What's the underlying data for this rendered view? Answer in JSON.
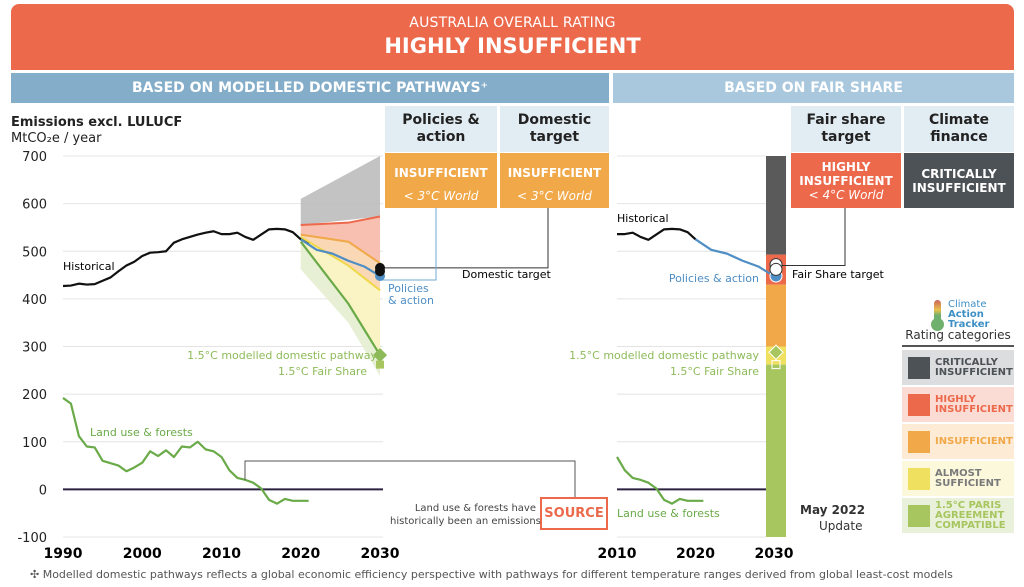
{
  "banner": {
    "subtitle": "AUSTRALIA OVERALL RATING",
    "title": "HIGHLY INSUFFICIENT"
  },
  "sections": {
    "left": "BASED ON MODELLED DOMESTIC PATHWAYS⁺",
    "right": "BASED ON FAIR SHARE"
  },
  "columns": [
    {
      "header": "Policies & action",
      "rating": "INSUFFICIENT",
      "sub": "< 3°C World",
      "color": "#f0a848"
    },
    {
      "header": "Domestic target",
      "rating": "INSUFFICIENT",
      "sub": "< 3°C World",
      "color": "#f0a848"
    },
    {
      "header": "Fair share target",
      "rating": "HIGHLY INSUFFICIENT",
      "sub": "< 4°C World",
      "color": "#ec694c"
    },
    {
      "header": "Climate finance",
      "rating": "CRITICALLY INSUFFICIENT",
      "sub": "",
      "color": "#4c5256"
    }
  ],
  "annotations": {
    "historical": "Historical",
    "policies_action": "Policies & action",
    "policies_line1": "Policies",
    "policies_line2": "& action",
    "domestic_target": "Domestic target",
    "fair_share_target": "Fair Share target",
    "modelled_pathway": "1.5°C modelled domestic pathway",
    "fair_share_15": "1.5°C Fair Share",
    "land_use": "Land use & forests",
    "source_note_1": "Land use & forests have",
    "source_note_2": "historically been an emissions",
    "source": "SOURCE",
    "update_1": "May 2022",
    "update_2": "Update"
  },
  "legend": {
    "logo": [
      "Climate",
      "Action",
      "Tracker"
    ],
    "title": "Rating categories",
    "items": [
      {
        "label": "CRITICALLY INSUFFICIENT",
        "color": "#4c5256",
        "bg": "#dcdddf",
        "text": "#4c5256"
      },
      {
        "label": "HIGHLY INSUFFICIENT",
        "color": "#ec694c",
        "bg": "#fbdcd5",
        "text": "#ec694c"
      },
      {
        "label": "INSUFFICIENT",
        "color": "#f0a848",
        "bg": "#fdebd6",
        "text": "#f0a848"
      },
      {
        "label": "ALMOST SUFFICIENT",
        "color": "#f0e060",
        "bg": "#fbf8dc",
        "text": "#7a7a7a"
      },
      {
        "label": "1.5°C PARIS AGREEMENT COMPATIBLE",
        "color": "#a7c65f",
        "bg": "#eaf1db",
        "text": "#a7c65f"
      }
    ]
  },
  "footnote": "✣ Modelled domestic pathways reflects a global economic efficiency perspective with pathways for different temperature ranges derived from global least-cost models",
  "chart_data": [
    {
      "type": "line",
      "title": "Emissions excl. LULUCF",
      "ylabel": "MtCO₂e / year",
      "ylim": [
        -100,
        700
      ],
      "yticks": [
        -100,
        0,
        100,
        200,
        300,
        400,
        500,
        600,
        700
      ],
      "xlim": [
        1990,
        2030
      ],
      "xticks": [
        1990,
        2000,
        2010,
        2020,
        2030
      ],
      "grid": true,
      "series": [
        {
          "name": "Historical",
          "color": "#111111",
          "x": [
            1990,
            1991,
            1992,
            1993,
            1994,
            1995,
            1996,
            1997,
            1998,
            1999,
            2000,
            2001,
            2002,
            2003,
            2004,
            2005,
            2006,
            2007,
            2008,
            2009,
            2010,
            2011,
            2012,
            2013,
            2014,
            2015,
            2016,
            2017,
            2018,
            2019,
            2020,
            2021
          ],
          "y": [
            427,
            428,
            432,
            430,
            431,
            438,
            445,
            458,
            470,
            478,
            490,
            497,
            498,
            500,
            518,
            525,
            530,
            535,
            539,
            542,
            536,
            536,
            539,
            530,
            524,
            535,
            546,
            547,
            546,
            540,
            525,
            515
          ]
        },
        {
          "name": "Policies & action",
          "color": "#4e8ec4",
          "x": [
            2020,
            2022,
            2024,
            2026,
            2028,
            2030
          ],
          "y": [
            525,
            503,
            495,
            480,
            468,
            448
          ]
        },
        {
          "name": "Land use & forests",
          "color": "#6aaa48",
          "x": [
            1990,
            1991,
            1992,
            1993,
            1994,
            1995,
            1996,
            1997,
            1998,
            1999,
            2000,
            2001,
            2002,
            2003,
            2004,
            2005,
            2006,
            2007,
            2008,
            2009,
            2010,
            2011,
            2012,
            2013,
            2014,
            2015,
            2016,
            2017,
            2018,
            2019,
            2020,
            2021
          ],
          "y": [
            192,
            180,
            112,
            90,
            88,
            60,
            55,
            50,
            38,
            46,
            56,
            80,
            70,
            82,
            68,
            90,
            88,
            100,
            84,
            80,
            68,
            40,
            24,
            20,
            14,
            2,
            -22,
            -30,
            -20,
            -24,
            -24,
            -24
          ]
        },
        {
          "name": "1.5°C modelled domestic pathway",
          "color": "#6aaa48",
          "x": [
            2020,
            2026,
            2030
          ],
          "y": [
            520,
            390,
            282
          ]
        }
      ],
      "bands": [
        {
          "name": "Critically insufficient",
          "color": "#bdbdbd",
          "x": [
            2020,
            2030
          ],
          "upper": [
            610,
            700
          ],
          "lower": [
            555,
            573
          ]
        },
        {
          "name": "Highly insufficient",
          "color": "#f7b9a8",
          "x": [
            2020,
            2026,
            2030
          ],
          "upper": [
            555,
            560,
            573
          ],
          "lower": [
            535,
            520,
            475
          ]
        },
        {
          "name": "Insufficient",
          "color": "#f9d4ad",
          "x": [
            2020,
            2026,
            2030
          ],
          "upper": [
            535,
            520,
            475
          ],
          "lower": [
            530,
            470,
            418
          ]
        },
        {
          "name": "Almost sufficient",
          "color": "#faf2bc",
          "x": [
            2020,
            2026,
            2030
          ],
          "upper": [
            530,
            470,
            418
          ],
          "lower": [
            520,
            390,
            282
          ]
        },
        {
          "name": "1.5°C compatible",
          "color": "#e4eecf",
          "x": [
            2020,
            2026,
            2030
          ],
          "upper": [
            520,
            390,
            282
          ],
          "lower": [
            462,
            350,
            238
          ]
        }
      ],
      "points": [
        {
          "name": "Domestic target 2030",
          "value": 465
        },
        {
          "name": "Domestic target 2030 b",
          "value": 458
        },
        {
          "name": "Policies & action 2030",
          "value": 448
        },
        {
          "name": "1.5°C modelled domestic pathway 2030",
          "value": 282
        },
        {
          "name": "1.5°C Fair Share 2030",
          "value": 262
        }
      ]
    },
    {
      "type": "line",
      "title": "Fair share",
      "xlim": [
        2010,
        2030
      ],
      "xticks": [
        2010,
        2020,
        2030
      ],
      "ylim": [
        -100,
        700
      ],
      "series": [
        {
          "name": "Historical",
          "color": "#111111",
          "x": [
            2010,
            2011,
            2012,
            2013,
            2014,
            2015,
            2016,
            2017,
            2018,
            2019,
            2020
          ],
          "y": [
            536,
            536,
            539,
            530,
            524,
            535,
            546,
            547,
            546,
            540,
            525
          ]
        },
        {
          "name": "Policies & action",
          "color": "#4e8ec4",
          "x": [
            2020,
            2022,
            2024,
            2026,
            2028,
            2030
          ],
          "y": [
            525,
            503,
            495,
            480,
            468,
            448
          ]
        },
        {
          "name": "Land use & forests",
          "color": "#6aaa48",
          "x": [
            2010,
            2011,
            2012,
            2013,
            2014,
            2015,
            2016,
            2017,
            2018,
            2019,
            2020,
            2021
          ],
          "y": [
            68,
            40,
            24,
            20,
            14,
            2,
            -22,
            -30,
            -20,
            -24,
            -24,
            -24
          ]
        }
      ],
      "fair_share_bar": [
        {
          "rating": "Critically insufficient",
          "color": "#5a5a5a",
          "from": 493,
          "to": 700
        },
        {
          "rating": "Highly insufficient",
          "color": "#ec694c",
          "from": 430,
          "to": 493
        },
        {
          "rating": "Insufficient",
          "color": "#f0a848",
          "from": 300,
          "to": 430
        },
        {
          "rating": "Almost sufficient",
          "color": "#f0e060",
          "from": 262,
          "to": 300
        },
        {
          "rating": "1.5°C Paris Agreement compatible",
          "color": "#a7c65f",
          "from": -100,
          "to": 262
        }
      ],
      "points": [
        {
          "name": "Fair Share target",
          "value": 472
        },
        {
          "name": "Fair Share target b",
          "value": 462
        },
        {
          "name": "Policies & action 2030",
          "value": 448
        },
        {
          "name": "1.5°C modelled domestic pathway",
          "value": 282
        },
        {
          "name": "1.5°C Fair Share",
          "value": 262
        }
      ]
    }
  ]
}
